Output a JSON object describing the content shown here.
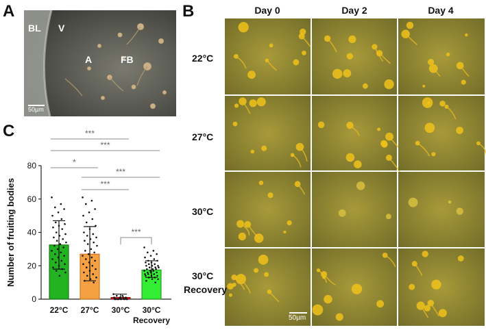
{
  "panels": {
    "a": {
      "letter": "A",
      "labels": {
        "bl": "BL",
        "v": "V",
        "a": "A",
        "fb": "FB"
      },
      "scale_bar": "50µm"
    },
    "b": {
      "letter": "B",
      "columns": [
        "Day 0",
        "Day 2",
        "Day 4"
      ],
      "rows": [
        "22°C",
        "27°C",
        "30°C",
        "30°C"
      ],
      "recovery_label": "Recovery",
      "scale_bar": "50µm"
    },
    "c": {
      "letter": "C"
    }
  },
  "chart_data": {
    "type": "bar",
    "categories": [
      "22°C",
      "27°C",
      "30°C",
      "30°C\nRecovery"
    ],
    "category_lines": [
      [
        "22°C"
      ],
      [
        "27°C"
      ],
      [
        "30°C"
      ],
      [
        "30°C",
        "Recovery"
      ]
    ],
    "values": [
      32.5,
      27,
      1,
      17.5
    ],
    "error_bars": [
      [
        18,
        47
      ],
      [
        11,
        43.5
      ],
      [
        0,
        3
      ],
      [
        13,
        23
      ]
    ],
    "colors": [
      "#22b222",
      "#f5a043",
      "#d62020",
      "#33ee33"
    ],
    "edge_colors": [
      "#0d6a0d",
      "#c76a10",
      "#8a0000",
      "#1a8a1a"
    ],
    "ylabel": "Number of fruiting bodies",
    "xlabel": "",
    "ylim": [
      0,
      80
    ],
    "yticks": [
      0,
      20,
      40,
      60,
      80
    ],
    "points": [
      [
        61,
        57,
        55,
        54,
        52,
        50,
        48,
        46,
        45,
        44,
        43,
        42,
        40,
        39,
        38,
        37,
        36,
        35,
        34,
        33,
        32,
        31,
        30,
        29,
        28,
        27,
        26,
        25,
        24,
        23,
        22,
        21,
        20,
        19,
        18,
        17,
        16,
        14
      ],
      [
        61,
        59,
        57,
        54,
        52,
        50,
        48,
        46,
        44,
        42,
        40,
        39,
        38,
        37,
        36,
        35,
        34,
        33,
        32,
        30,
        29,
        28,
        27,
        26,
        25,
        24,
        23,
        22,
        21,
        20,
        19,
        18,
        17,
        16,
        15,
        14,
        13,
        12,
        11,
        10
      ],
      [
        3,
        2,
        2,
        1,
        1,
        1,
        1,
        0,
        0,
        0,
        0,
        0,
        0,
        0,
        0,
        0,
        0,
        0
      ],
      [
        31,
        29,
        28,
        27,
        26,
        25,
        24,
        23,
        23,
        22,
        22,
        21,
        21,
        20,
        20,
        20,
        19,
        19,
        19,
        18,
        18,
        18,
        17,
        17,
        17,
        16,
        16,
        16,
        15,
        15,
        15,
        14,
        14,
        14,
        13,
        13,
        12,
        12,
        11,
        10
      ]
    ],
    "significance": [
      {
        "from": 0,
        "to": 2,
        "label": "***"
      },
      {
        "from": 0,
        "to": 3,
        "label": "***"
      },
      {
        "from": 0,
        "to": 1,
        "label": "*"
      },
      {
        "from": 1,
        "to": 3,
        "label": "***"
      },
      {
        "from": 1,
        "to": 2,
        "label": "***"
      },
      {
        "from": 2,
        "to": 3,
        "label": "***"
      }
    ]
  }
}
